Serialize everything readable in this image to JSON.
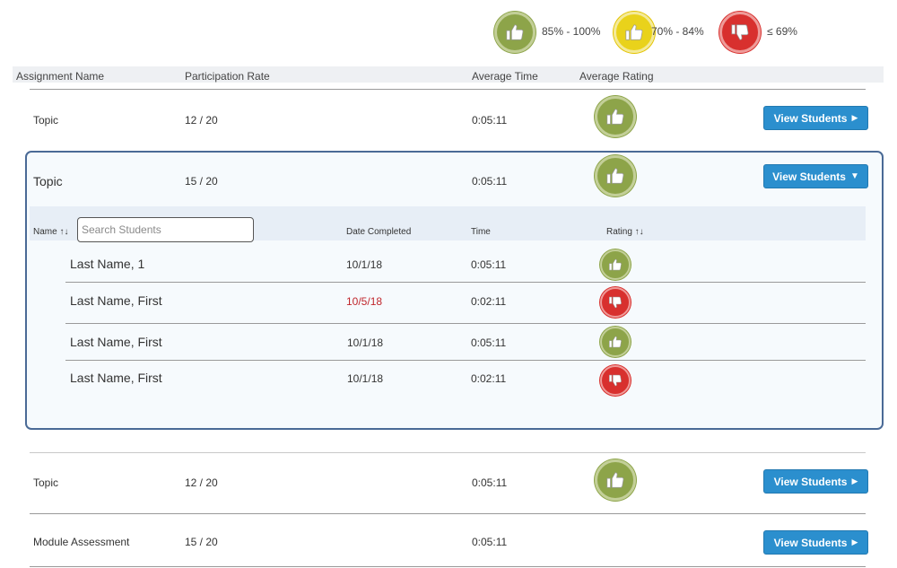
{
  "legend": [
    {
      "label": "85% - 100%",
      "color": "#8da449",
      "icon": "thumbs-up-icon"
    },
    {
      "label": "70% - 84%",
      "color": "#e9d21b",
      "icon": "thumbs-up-icon"
    },
    {
      "label": "≤ 69%",
      "color": "#d8302e",
      "icon": "thumbs-down-icon"
    }
  ],
  "columns": {
    "assignment_name": "Assignment Name",
    "participation_rate": "Participation Rate",
    "average_time": "Average Time",
    "average_rating": "Average Rating"
  },
  "assignments": [
    {
      "name": "Topic",
      "participation": "12 / 20",
      "avg_time": "0:05:11",
      "rating": "green",
      "button": "View Students",
      "expanded": false
    },
    {
      "name": "Topic",
      "participation": "15 / 20",
      "avg_time": "0:05:11",
      "rating": "green",
      "button": "View Students",
      "expanded": true
    },
    {
      "name": "Topic",
      "participation": "12 / 20",
      "avg_time": "0:05:11",
      "rating": "green",
      "button": "View Students",
      "expanded": false
    },
    {
      "name": "Module Assessment",
      "participation": "15 / 20",
      "avg_time": "0:05:11",
      "rating": "none",
      "button": "View Students",
      "expanded": false
    }
  ],
  "students_table": {
    "name_header": "Name ↑↓",
    "search_placeholder": "Search Students",
    "date_header": "Date Completed",
    "time_header": "Time",
    "rating_header": "Rating ↑↓",
    "rows": [
      {
        "name": "Last Name,  1",
        "date": "10/1/18",
        "time": "0:05:11",
        "rating": "green",
        "late": false
      },
      {
        "name": "Last Name, First",
        "date": "10/5/18",
        "time": "0:02:11",
        "rating": "red",
        "late": true
      },
      {
        "name": "Last Name, First",
        "date": "10/1/18",
        "time": "0:05:11",
        "rating": "green",
        "late": false
      },
      {
        "name": "Last Name, First",
        "date": "10/1/18",
        "time": "0:02:11",
        "rating": "red",
        "late": false
      }
    ]
  },
  "colors": {
    "accent": "#2b8fce",
    "panel_border": "#4a6a96",
    "late_date": "#c0262c"
  }
}
